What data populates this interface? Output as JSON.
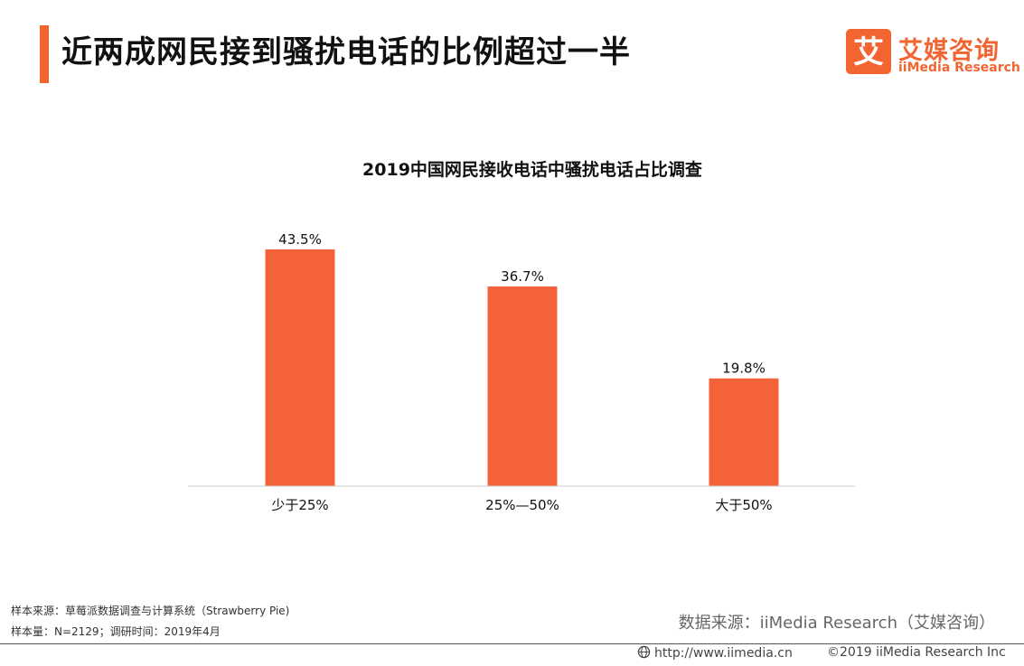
{
  "page": {
    "title": "近两成网民接到骚扰电话的比例超过一半"
  },
  "logo": {
    "mark_glyph": "艾",
    "name_cn": "艾媒咨询",
    "name_en": "iiMedia Research"
  },
  "chart_data": {
    "type": "bar",
    "title": "2019中国网民接收电话中骚扰电话占比调查",
    "categories": [
      "少于25%",
      "25%—50%",
      "大于50%"
    ],
    "values": [
      43.5,
      36.7,
      19.8
    ],
    "value_labels": [
      "43.5%",
      "36.7%",
      "19.8%"
    ],
    "ylim": [
      0,
      45
    ],
    "grid": false,
    "legend": "none",
    "bar_color": "#f4623a"
  },
  "footnotes": {
    "sample_source": "样本来源：草莓派数据调查与计算系统（Strawberry Pie)",
    "sample_size": "样本量：N=2129；调研时间：2019年4月",
    "data_source": "数据来源：iiMedia Research（艾媒咨询）"
  },
  "footer": {
    "url": "http://www.iimedia.cn",
    "copyright": "©2019  iiMedia Research  Inc"
  },
  "colors": {
    "accent": "#f26531",
    "bar": "#f4623a",
    "axis": "#cccccc"
  },
  "icons": {
    "globe": "globe-icon"
  }
}
